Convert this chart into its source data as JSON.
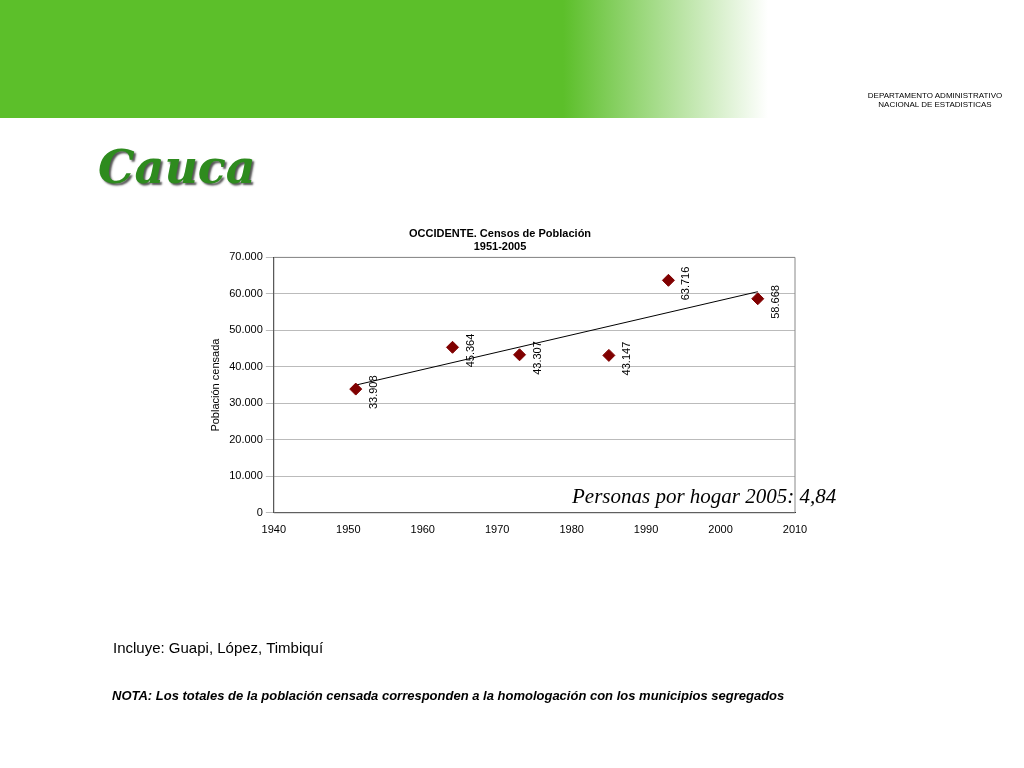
{
  "chart_data": {
    "type": "scatter",
    "title": "OCCIDENTE. Censos de Población",
    "subtitle": "1951-2005",
    "ylabel": "Población censada",
    "annotations": [
      "Cauca",
      "Personas por hogar 2005: 4,84",
      "Incluye: Guapi, López, Timbiquí",
      "NOTA: Los totales de la población censada corresponden a la homologación con los municipios segregados",
      "DEPARTAMENTO ADMINISTRATIVO NACIONAL DE ESTADISTICAS"
    ],
    "series": [
      {
        "x": [
          1951,
          1964,
          1973,
          1985,
          1993,
          2005
        ],
        "values": [
          33908,
          45364,
          43307,
          43147,
          63716,
          58668
        ],
        "value_labels": [
          "33.908",
          "45.364",
          "43.307",
          "43.147",
          "63.716",
          "58.668"
        ],
        "color": "#800000",
        "marker": "diamond"
      },
      {
        "type": "line",
        "x": [
          1951,
          2005
        ],
        "values": [
          35000,
          60600
        ],
        "color": "#000000",
        "marker": "none"
      }
    ],
    "xlim": [
      1940,
      2010
    ],
    "xticks": [
      1940,
      1950,
      1960,
      1970,
      1980,
      1990,
      2000,
      2010
    ],
    "ylim": [
      0,
      70000
    ],
    "yticks": [
      0,
      {
        "value": 10000,
        "label": "10.000"
      },
      {
        "value": 20000,
        "label": "20.000"
      },
      {
        "value": 30000,
        "label": "30.000"
      },
      {
        "value": 40000,
        "label": "40.000"
      },
      {
        "value": 50000,
        "label": "50.000"
      },
      {
        "value": 60000,
        "label": "60.000"
      },
      {
        "value": 70000,
        "label": "70.000"
      }
    ],
    "grid": "y",
    "legend": false
  }
}
